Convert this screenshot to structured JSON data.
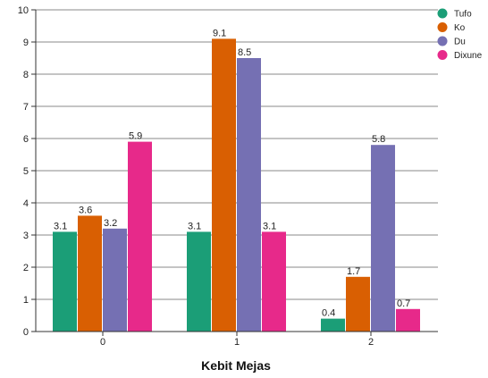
{
  "chart_data": {
    "type": "bar",
    "categories": [
      "0",
      "1",
      "2"
    ],
    "series": [
      {
        "name": "Tufo",
        "color": "#1b9e77",
        "values": [
          3.1,
          3.1,
          0.4
        ]
      },
      {
        "name": "Ko",
        "color": "#d95f02",
        "values": [
          3.6,
          9.1,
          1.7
        ]
      },
      {
        "name": "Du",
        "color": "#7570b3",
        "values": [
          3.2,
          8.5,
          5.8
        ]
      },
      {
        "name": "Dixune",
        "color": "#e7298a",
        "values": [
          5.9,
          3.1,
          0.7
        ]
      }
    ],
    "xlabel": "Kebit Mejas",
    "ylabel": "",
    "ylim": [
      0,
      10
    ],
    "yticks": [
      0,
      1,
      2,
      3,
      4,
      5,
      6,
      7,
      8,
      9,
      10
    ],
    "grid": true,
    "legend_position": "top-right"
  }
}
